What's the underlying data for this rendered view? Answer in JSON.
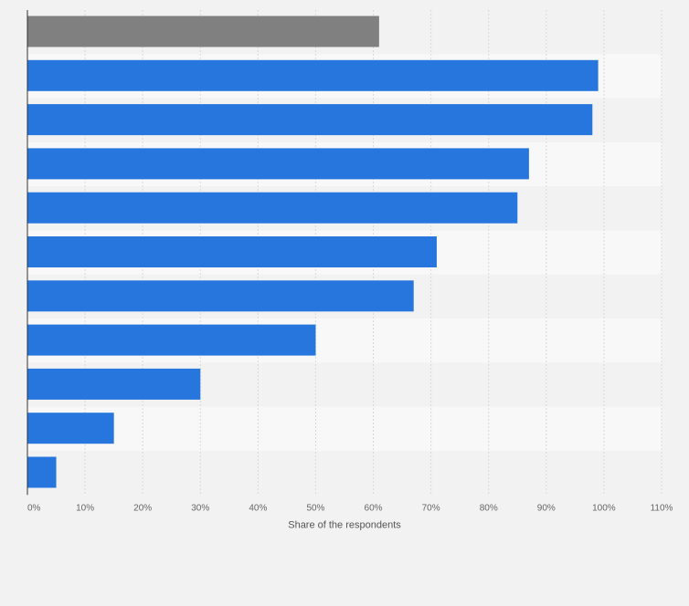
{
  "chart_data": {
    "type": "bar",
    "orientation": "horizontal",
    "title": "",
    "xlabel": "Share of the respondents",
    "ylabel": "",
    "xlim": [
      0,
      110
    ],
    "x_ticks": [
      0,
      10,
      20,
      30,
      40,
      50,
      60,
      70,
      80,
      90,
      100,
      110
    ],
    "tick_labels": [
      "0%",
      "10%",
      "20%",
      "30%",
      "40%",
      "50%",
      "60%",
      "70%",
      "80%",
      "90%",
      "100%",
      "110%"
    ],
    "categories": [
      "",
      "",
      "",
      "",
      "",
      "",
      "",
      "",
      "",
      "",
      ""
    ],
    "values": [
      61,
      99,
      98,
      87,
      85,
      71,
      67,
      50,
      30,
      15,
      5
    ],
    "bar_colors": [
      "#808080",
      "#2776dd",
      "#2776dd",
      "#2776dd",
      "#2776dd",
      "#2776dd",
      "#2776dd",
      "#2776dd",
      "#2776dd",
      "#2776dd",
      "#2776dd"
    ],
    "grid": true
  }
}
